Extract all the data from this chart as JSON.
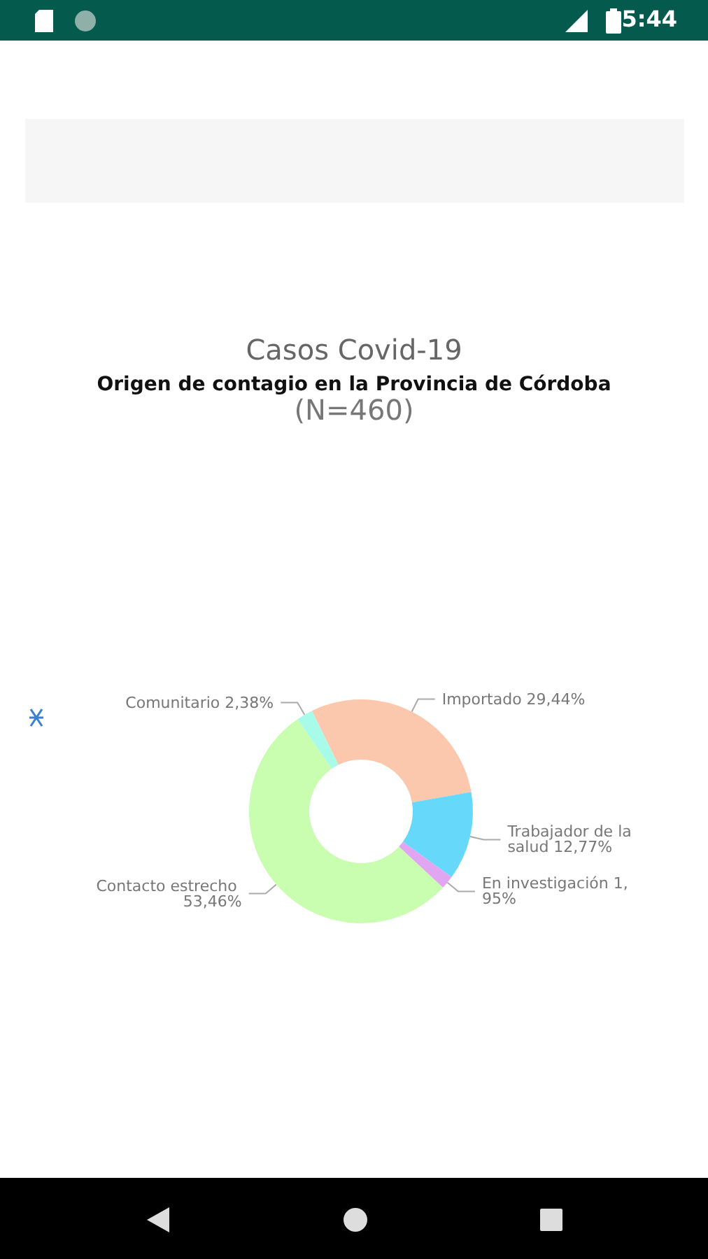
{
  "chart_data": {
    "type": "donut",
    "title": "Casos Covid-19",
    "subtitle": "Origen de contagio en la Provincia de Córdoba",
    "annotations": [
      "(N=460)",
      "5:44"
    ],
    "categories": [
      "Importado",
      "Trabajador de la salud",
      "En investigación",
      "Contacto estrecho",
      "Comunitario"
    ],
    "values": [
      29.44,
      12.77,
      1.95,
      53.46,
      2.38
    ],
    "colors": [
      "#fbc8ad",
      "#66d9fb",
      "#e0a6f2",
      "#c9fdb0",
      "#a9fbe9"
    ],
    "value_labels": [
      "29,44%",
      "12,77%",
      "1,95%",
      "53,46%",
      "2,38%"
    ],
    "legend": false
  }
}
